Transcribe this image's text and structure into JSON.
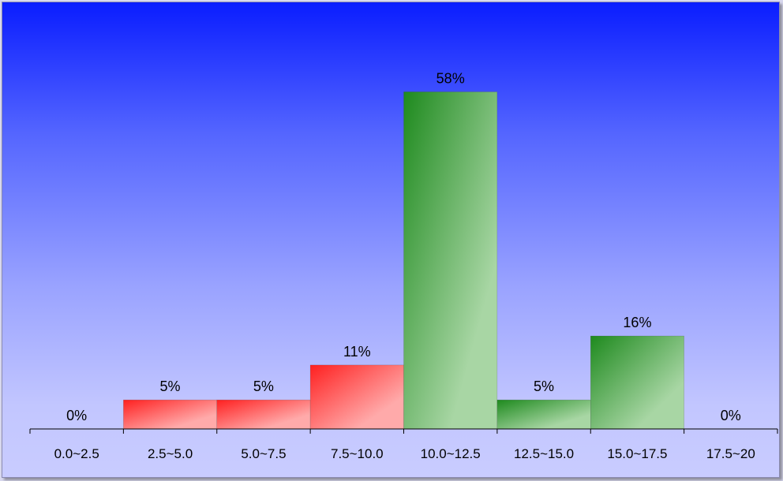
{
  "chart_data": {
    "type": "bar",
    "categories": [
      "0.0~2.5",
      "2.5~5.0",
      "5.0~7.5",
      "7.5~10.0",
      "10.0~12.5",
      "12.5~15.0",
      "15.0~17.5",
      "17.5~20"
    ],
    "values": [
      0,
      5,
      5,
      11,
      58,
      5,
      16,
      0
    ],
    "value_labels": [
      "0%",
      "5%",
      "5%",
      "11%",
      "58%",
      "5%",
      "16%",
      "0%"
    ],
    "value_unit": "%",
    "ylim": [
      0,
      70
    ],
    "grid": false,
    "legend": "none",
    "title": "",
    "xlabel": "",
    "ylabel": "",
    "bar_colors": [
      "#ff2020",
      "#ff2020",
      "#ff2020",
      "#ff2020",
      "#1e8a1e",
      "#1e8a1e",
      "#1e8a1e",
      "#1e8a1e"
    ],
    "bar_colors_light": [
      "#ffaaaa",
      "#ffaaaa",
      "#ffaaaa",
      "#ffaaaa",
      "#a8d6a4",
      "#a8d6a4",
      "#a8d6a4",
      "#a8d6a4"
    ],
    "background_top": "#0a1dff",
    "background_bottom": "#c9ccff"
  }
}
